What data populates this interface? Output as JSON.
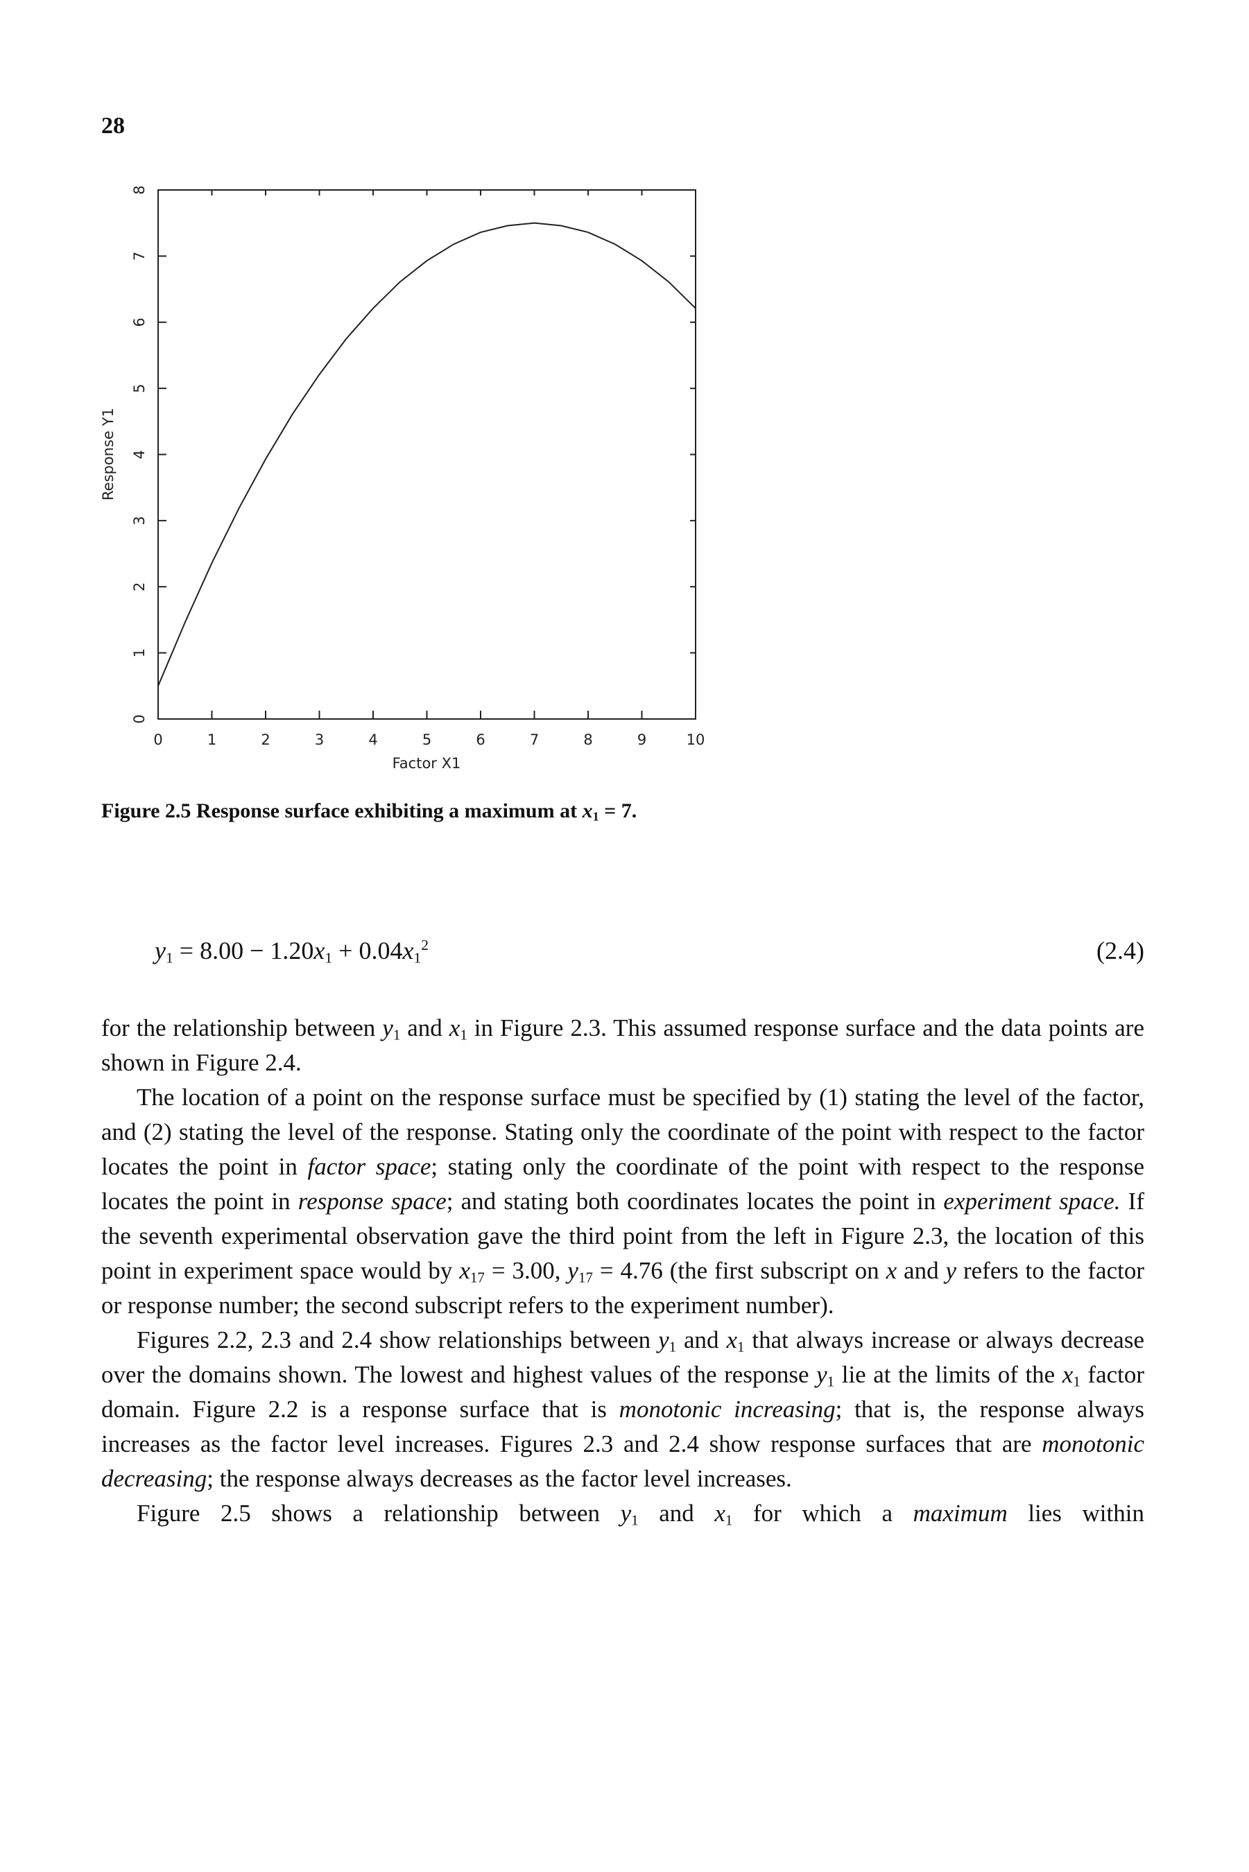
{
  "page_number": "28",
  "chart_data": {
    "type": "line",
    "x_label": "Factor X1",
    "y_label": "Response Y1",
    "x": [
      0,
      0.5,
      1,
      1.5,
      2,
      2.5,
      3,
      3.5,
      4,
      4.5,
      5,
      5.5,
      6,
      6.5,
      7,
      7.5,
      8,
      8.5,
      9,
      9.5,
      10
    ],
    "values": [
      0.5,
      1.46,
      2.36,
      3.18,
      3.93,
      4.61,
      5.21,
      5.75,
      6.21,
      6.61,
      6.93,
      7.18,
      7.36,
      7.46,
      7.5,
      7.46,
      7.36,
      7.18,
      6.93,
      6.61,
      6.21
    ],
    "color": "#222222",
    "xlim": [
      0,
      10
    ],
    "ylim": [
      0,
      8
    ],
    "xticks": [
      0,
      1,
      2,
      3,
      4,
      5,
      6,
      7,
      8,
      9,
      10
    ],
    "yticks": [
      0,
      1,
      2,
      3,
      4,
      5,
      6,
      7,
      8
    ]
  },
  "caption": [
    "Figure 2.5 Response surface exhibiting a maximum at ",
    {
      "i": "x"
    },
    {
      "sub": "1"
    },
    " = 7."
  ],
  "equation": {
    "runs": [
      {
        "i": "y"
      },
      {
        "sub": "1"
      },
      " = 8.00 − 1.20",
      {
        "i": "x"
      },
      {
        "sub": "1"
      },
      " + 0.04",
      {
        "i": "x"
      },
      {
        "sub": "1"
      },
      {
        "sup": "2"
      }
    ],
    "number": "(2.4)"
  },
  "paragraphs": [
    [
      "for the relationship between ",
      {
        "i": "y"
      },
      {
        "sub": "1"
      },
      " and ",
      {
        "i": "x"
      },
      {
        "sub": "1"
      },
      " in Figure 2.3. This assumed response surface and the data points are shown in Figure 2.4."
    ],
    [
      "The location of a point on the response surface must be specified by (1) stating the level of the factor, and (2) stating the level of the response. Stating only the coordinate of the point with respect to the factor locates the point in ",
      {
        "i": "factor space"
      },
      "; stating only the coordinate of the point with respect to the response locates the point in ",
      {
        "i": "response space"
      },
      "; and stating both coordinates locates the point in ",
      {
        "i": "experiment space."
      },
      " If the seventh experimental observation gave the third point from the left in Figure 2.3, the location of this point in experiment space would by ",
      {
        "i": "x"
      },
      {
        "sub": "17"
      },
      " = 3.00, ",
      {
        "i": "y"
      },
      {
        "sub": "17"
      },
      " = 4.76 (the first subscript on ",
      {
        "i": "x"
      },
      " and ",
      {
        "i": "y"
      },
      " refers to the factor or response number; the second subscript refers to the experiment number)."
    ],
    [
      "Figures 2.2, 2.3 and 2.4 show relationships between ",
      {
        "i": "y"
      },
      {
        "sub": "1"
      },
      " and ",
      {
        "i": "x"
      },
      {
        "sub": "1"
      },
      " that always increase or always decrease over the domains shown. The lowest and highest values of the response ",
      {
        "i": "y"
      },
      {
        "sub": "1"
      },
      " lie at the limits of the ",
      {
        "i": "x"
      },
      {
        "sub": "1"
      },
      " factor domain. Figure 2.2 is a response surface that is ",
      {
        "i": "monotonic increasing"
      },
      "; that is, the response always increases as the factor level increases. Figures 2.3 and 2.4 show response surfaces that are ",
      {
        "i": "monotonic decreasing"
      },
      "; the response always decreases as the factor level increases."
    ],
    [
      "Figure 2.5 shows a relationship between ",
      {
        "i": "y"
      },
      {
        "sub": "1"
      },
      " and ",
      {
        "i": "x"
      },
      {
        "sub": "1"
      },
      " for which a ",
      {
        "i": "maximum"
      },
      " lies within"
    ]
  ]
}
